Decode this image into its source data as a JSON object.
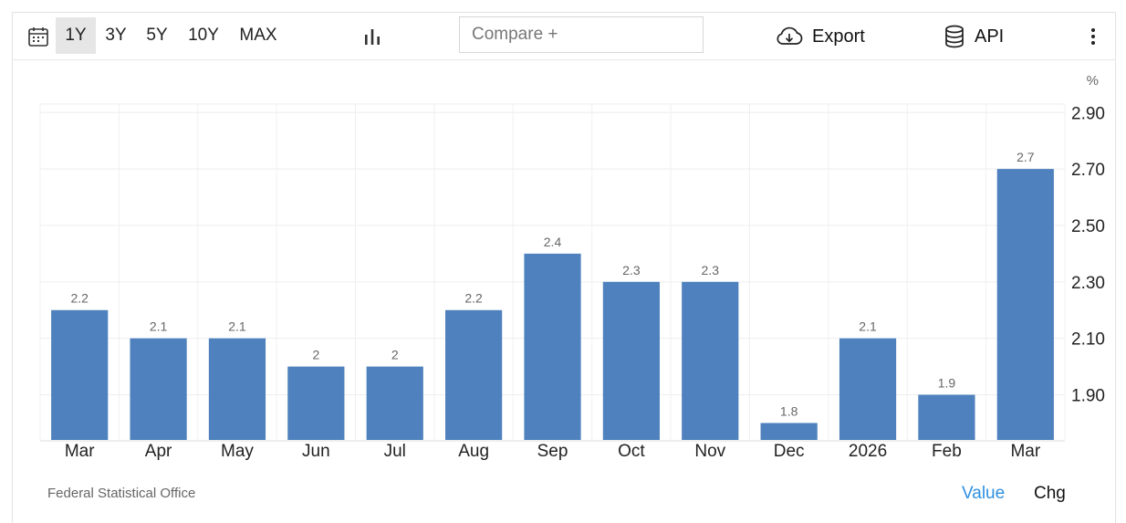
{
  "toolbar": {
    "ranges": [
      "1Y",
      "3Y",
      "5Y",
      "10Y",
      "MAX"
    ],
    "active_range": "1Y",
    "compare_placeholder": "Compare +",
    "export_label": "Export",
    "api_label": "API",
    "icons": {
      "calendar": "calendar-icon",
      "chart_type": "bar-chart-icon",
      "export": "cloud-download-icon",
      "api": "database-icon",
      "more": "more-vertical-icon"
    }
  },
  "chart_data": {
    "type": "bar",
    "unit": "%",
    "categories": [
      "Mar",
      "Apr",
      "May",
      "Jun",
      "Jul",
      "Aug",
      "Sep",
      "Oct",
      "Nov",
      "Dec",
      "2026",
      "Feb",
      "Mar"
    ],
    "values": [
      2.2,
      2.1,
      2.1,
      2.0,
      2.0,
      2.2,
      2.4,
      2.3,
      2.3,
      1.8,
      2.1,
      1.9,
      2.7
    ],
    "value_labels": [
      "2.2",
      "2.1",
      "2.1",
      "2",
      "2",
      "2.2",
      "2.4",
      "2.3",
      "2.3",
      "1.8",
      "2.1",
      "1.9",
      "2.7"
    ],
    "yticks": [
      1.9,
      2.1,
      2.3,
      2.5,
      2.7,
      2.9
    ],
    "ytick_labels": [
      "1.90",
      "2.10",
      "2.30",
      "2.50",
      "2.70",
      "2.90"
    ],
    "y_axis_position": "right",
    "ylim": [
      1.74,
      2.93
    ],
    "grid": true,
    "bar_color": "#4e81bd"
  },
  "footer": {
    "source": "Federal Statistical Office",
    "value_label": "Value",
    "chg_label": "Chg"
  },
  "colors": {
    "accent": "#2f8fe0",
    "active_range_bg": "#e6e6e6"
  }
}
